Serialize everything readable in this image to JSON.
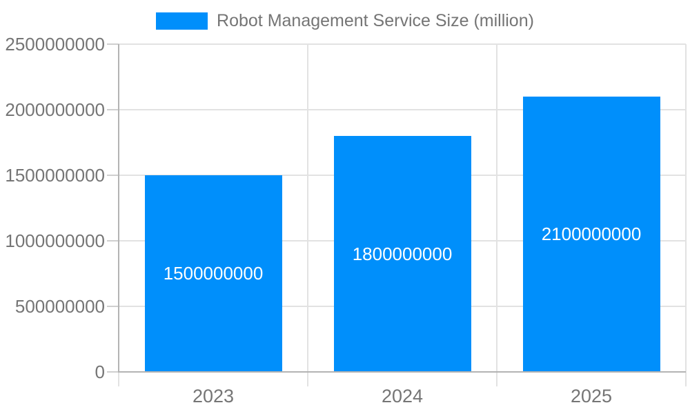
{
  "legend": {
    "label": "Robot Management Service Size (million)"
  },
  "chart_data": {
    "type": "bar",
    "title": "",
    "categories": [
      "2023",
      "2024",
      "2025"
    ],
    "series": [
      {
        "name": "Robot Management Service Size (million)",
        "values": [
          1500000000,
          1800000000,
          2100000000
        ]
      }
    ],
    "value_labels": [
      "1500000000",
      "1800000000",
      "2100000000"
    ],
    "ytick_labels": [
      "0",
      "500000000",
      "1000000000",
      "1500000000",
      "2000000000",
      "2500000000"
    ],
    "ytick_values": [
      0,
      500000000,
      1000000000,
      1500000000,
      2000000000,
      2500000000
    ],
    "ylim": [
      0,
      2500000000
    ],
    "xlabel": "",
    "ylabel": "",
    "grid": true,
    "legend_position": "top-center",
    "colors": {
      "bar": "#008FFB",
      "axis_text": "#757575",
      "value_text": "#FFFFFF",
      "gridline": "#E2E2E2",
      "axis_line": "#B3B3B3",
      "tick_mark": "#CFCFCF",
      "background": "#FFFFFF"
    }
  }
}
